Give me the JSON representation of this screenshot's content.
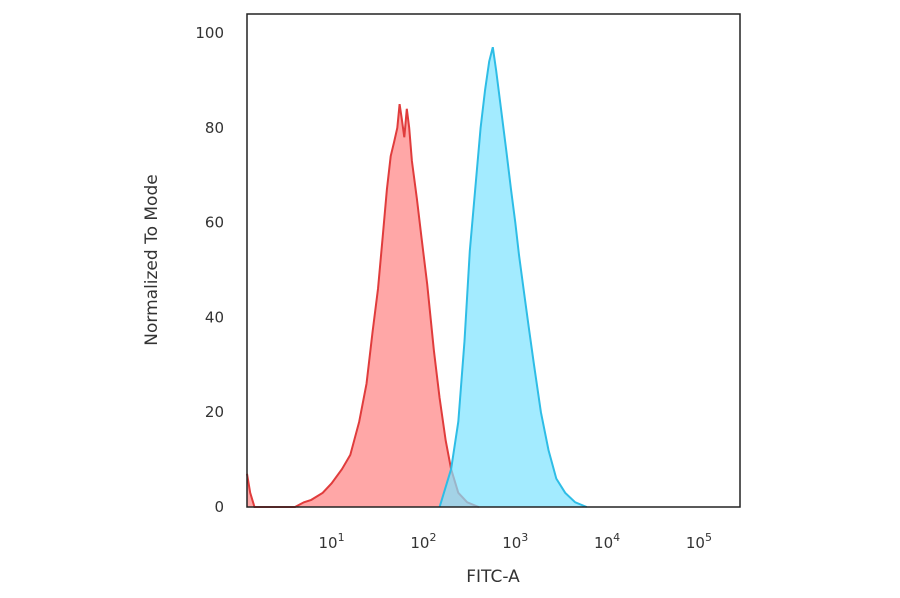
{
  "chart_data": {
    "type": "area",
    "title": "",
    "xlabel": "FITC-A",
    "ylabel": "Normalized To Mode",
    "xscale": "log",
    "xlim": [
      1.2,
      280000
    ],
    "ylim": [
      0,
      104
    ],
    "yticks": [
      {
        "value": 0,
        "label": "0"
      },
      {
        "value": 20,
        "label": "20"
      },
      {
        "value": 40,
        "label": "40"
      },
      {
        "value": 60,
        "label": "60"
      },
      {
        "value": 80,
        "label": "80"
      },
      {
        "value": 100,
        "label": "100"
      }
    ],
    "xticks": [
      {
        "value": 10,
        "base": "10",
        "exp": "1"
      },
      {
        "value": 100,
        "base": "10",
        "exp": "2"
      },
      {
        "value": 1000,
        "base": "10",
        "exp": "3"
      },
      {
        "value": 10000,
        "base": "10",
        "exp": "4"
      },
      {
        "value": 100000,
        "base": "10",
        "exp": "5"
      }
    ],
    "grid": false,
    "legend": "none",
    "series": [
      {
        "color_fill": "#ff8a8a",
        "color_line": "#e03c3c",
        "points": [
          [
            1.2,
            7
          ],
          [
            1.3,
            3
          ],
          [
            1.45,
            0
          ],
          [
            4,
            0
          ],
          [
            5,
            1
          ],
          [
            6,
            1.5
          ],
          [
            8,
            3
          ],
          [
            10,
            5
          ],
          [
            13,
            8
          ],
          [
            16,
            11
          ],
          [
            20,
            18
          ],
          [
            24,
            26
          ],
          [
            28,
            37
          ],
          [
            32,
            46
          ],
          [
            36,
            57
          ],
          [
            40,
            67
          ],
          [
            44,
            74
          ],
          [
            48,
            77
          ],
          [
            52,
            80
          ],
          [
            55,
            85
          ],
          [
            58,
            82
          ],
          [
            62,
            78
          ],
          [
            66,
            84
          ],
          [
            70,
            80
          ],
          [
            75,
            73
          ],
          [
            85,
            65
          ],
          [
            95,
            57
          ],
          [
            110,
            47
          ],
          [
            130,
            33
          ],
          [
            150,
            23
          ],
          [
            175,
            14
          ],
          [
            200,
            8
          ],
          [
            240,
            3
          ],
          [
            300,
            1
          ],
          [
            400,
            0
          ]
        ]
      },
      {
        "color_fill": "#7fe3ff",
        "color_line": "#2ebde6",
        "points": [
          [
            150,
            0
          ],
          [
            200,
            8
          ],
          [
            240,
            18
          ],
          [
            280,
            35
          ],
          [
            320,
            54
          ],
          [
            370,
            68
          ],
          [
            420,
            80
          ],
          [
            470,
            88
          ],
          [
            520,
            94
          ],
          [
            570,
            97
          ],
          [
            620,
            92
          ],
          [
            700,
            84
          ],
          [
            800,
            75
          ],
          [
            900,
            67
          ],
          [
            1000,
            60
          ],
          [
            1100,
            53
          ],
          [
            1250,
            45
          ],
          [
            1400,
            38
          ],
          [
            1600,
            30
          ],
          [
            1900,
            20
          ],
          [
            2300,
            12
          ],
          [
            2800,
            6
          ],
          [
            3500,
            3
          ],
          [
            4500,
            1
          ],
          [
            6000,
            0
          ]
        ]
      }
    ]
  }
}
